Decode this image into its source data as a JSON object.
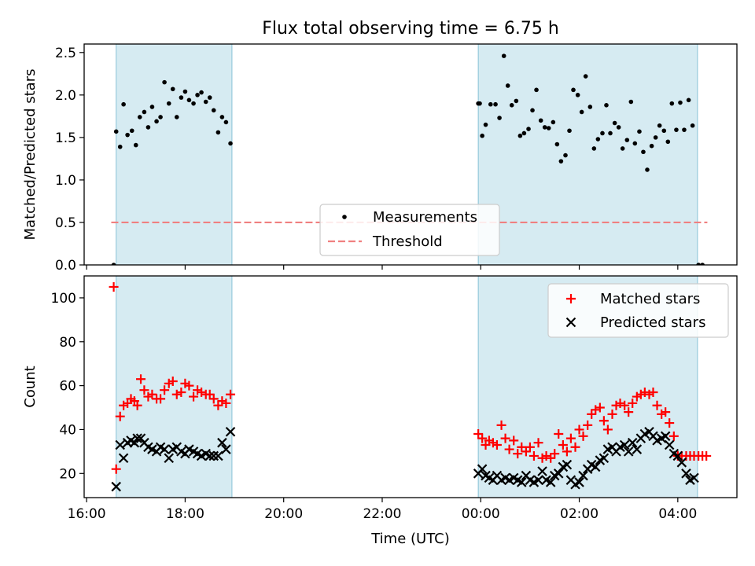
{
  "figure_title": "Flux total observing time = 6.75 h",
  "chart_data": [
    {
      "type": "scatter",
      "name": "ratio-panel",
      "ylabel": "Matched/Predicted stars",
      "xlabel": "",
      "xlim": [
        15.95,
        29.2
      ],
      "ylim": [
        0,
        2.6
      ],
      "yticks": [
        0.0,
        0.5,
        1.0,
        1.5,
        2.0,
        2.5
      ],
      "ytick_labels": [
        "0.0",
        "0.5",
        "1.0",
        "1.5",
        "2.0",
        "2.5"
      ],
      "shaded_spans": [
        [
          16.6,
          18.95
        ],
        [
          23.95,
          28.4
        ]
      ],
      "threshold": {
        "label": "Threshold",
        "value": 0.5,
        "x_range": [
          16.5,
          28.6
        ],
        "color": "#f08080"
      },
      "legend": {
        "position": "lower-center",
        "entries": [
          "Measurements",
          "Threshold"
        ]
      },
      "series": [
        {
          "name": "Measurements",
          "color": "#000000",
          "x": [
            16.55,
            16.6,
            16.68,
            16.75,
            16.83,
            16.92,
            17.0,
            17.08,
            17.17,
            17.25,
            17.33,
            17.42,
            17.5,
            17.58,
            17.67,
            17.75,
            17.83,
            17.92,
            18.0,
            18.08,
            18.17,
            18.25,
            18.33,
            18.42,
            18.5,
            18.58,
            18.67,
            18.75,
            18.83,
            23.95,
            24.03,
            24.1,
            24.2,
            24.3,
            24.38,
            24.47,
            24.55,
            24.63,
            24.72,
            24.8,
            24.88,
            24.97,
            25.05,
            25.13,
            25.22,
            25.3,
            25.38,
            25.47,
            25.55,
            25.63,
            25.72,
            25.8,
            25.88,
            25.97,
            26.05,
            26.13,
            26.22,
            26.3,
            26.38,
            26.47,
            26.55,
            26.63,
            26.72,
            26.8,
            26.88,
            26.97,
            27.05,
            27.13,
            27.22,
            27.3,
            27.38,
            27.47,
            27.55,
            27.63,
            27.72,
            27.8,
            27.88,
            27.97,
            28.05,
            28.13,
            28.22,
            28.3,
            28.42,
            28.5,
            18.92,
            23.98
          ],
          "y": [
            0.0,
            1.57,
            1.39,
            1.89,
            1.53,
            1.58,
            1.41,
            1.74,
            1.8,
            1.62,
            1.86,
            1.69,
            1.74,
            2.15,
            1.9,
            2.07,
            1.74,
            1.97,
            2.04,
            1.94,
            1.9,
            2.0,
            2.03,
            1.92,
            1.97,
            1.82,
            1.56,
            1.74,
            1.68,
            1.9,
            1.52,
            1.65,
            1.89,
            1.89,
            1.73,
            2.46,
            2.11,
            1.88,
            1.93,
            1.52,
            1.55,
            1.6,
            1.82,
            2.06,
            1.7,
            1.62,
            1.61,
            1.68,
            1.42,
            1.22,
            1.29,
            1.58,
            2.06,
            2.0,
            1.8,
            2.22,
            1.86,
            1.37,
            1.48,
            1.55,
            1.88,
            1.55,
            1.67,
            1.62,
            1.37,
            1.47,
            1.92,
            1.43,
            1.57,
            1.33,
            1.12,
            1.4,
            1.5,
            1.64,
            1.58,
            1.45,
            1.9,
            1.59,
            1.91,
            1.59,
            1.94,
            1.64,
            0.0,
            0.0,
            1.43,
            1.9
          ]
        }
      ]
    },
    {
      "type": "scatter",
      "name": "count-panel",
      "ylabel": "Count",
      "xlabel": "Time (UTC)",
      "xlim": [
        15.95,
        29.2
      ],
      "ylim": [
        9,
        110
      ],
      "yticks": [
        20,
        40,
        60,
        80,
        100
      ],
      "ytick_labels": [
        "20",
        "40",
        "60",
        "80",
        "100"
      ],
      "xticks": [
        16,
        18,
        20,
        22,
        24,
        26,
        28
      ],
      "xtick_labels": [
        "16:00",
        "18:00",
        "20:00",
        "22:00",
        "00:00",
        "02:00",
        "04:00"
      ],
      "shaded_spans": [
        [
          16.6,
          18.95
        ],
        [
          23.95,
          28.4
        ]
      ],
      "legend": {
        "position": "top-right",
        "entries": [
          "Matched stars",
          "Predicted stars"
        ]
      },
      "series": [
        {
          "name": "Matched stars",
          "marker": "+",
          "color": "#ff0000",
          "x": [
            16.55,
            16.6,
            16.68,
            16.75,
            16.83,
            16.9,
            16.97,
            17.03,
            17.1,
            17.17,
            17.25,
            17.33,
            17.42,
            17.5,
            17.58,
            17.67,
            17.75,
            17.83,
            17.92,
            18.0,
            18.08,
            18.17,
            18.25,
            18.33,
            18.42,
            18.5,
            18.58,
            18.67,
            18.75,
            18.83,
            18.92,
            23.95,
            24.03,
            24.1,
            24.17,
            24.25,
            24.33,
            24.42,
            24.5,
            24.58,
            24.67,
            24.75,
            24.83,
            24.92,
            25.0,
            25.08,
            25.17,
            25.25,
            25.33,
            25.42,
            25.5,
            25.58,
            25.67,
            25.75,
            25.83,
            25.92,
            26.0,
            26.08,
            26.17,
            26.25,
            26.33,
            26.42,
            26.5,
            26.58,
            26.67,
            26.75,
            26.83,
            26.92,
            27.0,
            27.08,
            27.17,
            27.25,
            27.33,
            27.42,
            27.5,
            27.58,
            27.67,
            27.75,
            27.83,
            27.92,
            28.0,
            28.08,
            28.17,
            28.25,
            28.33,
            28.42,
            28.5,
            28.58
          ],
          "y": [
            105,
            22,
            46,
            51,
            52,
            54,
            53,
            51,
            63,
            58,
            55,
            56,
            54,
            54,
            58,
            61,
            62,
            56,
            57,
            61,
            60,
            55,
            58,
            57,
            56,
            56,
            54,
            51,
            53,
            52,
            56,
            38,
            36,
            33,
            35,
            34,
            33,
            42,
            36,
            31,
            35,
            29,
            32,
            30,
            32,
            28,
            34,
            27,
            28,
            27,
            29,
            38,
            33,
            30,
            36,
            32,
            40,
            37,
            42,
            47,
            49,
            50,
            44,
            40,
            47,
            51,
            52,
            51,
            48,
            52,
            55,
            56,
            57,
            56,
            57,
            51,
            47,
            48,
            43,
            37,
            28,
            28,
            28,
            28,
            28,
            28,
            28,
            28
          ]
        },
        {
          "name": "Predicted stars",
          "marker": "x",
          "color": "#000000",
          "x": [
            16.6,
            16.68,
            16.75,
            16.83,
            16.9,
            16.97,
            17.03,
            17.1,
            17.17,
            17.25,
            17.33,
            17.42,
            17.5,
            17.58,
            17.67,
            17.75,
            17.83,
            17.92,
            18.0,
            18.08,
            18.17,
            18.25,
            18.33,
            18.42,
            18.5,
            18.58,
            18.67,
            18.75,
            18.83,
            18.92,
            23.95,
            24.03,
            24.1,
            24.17,
            24.25,
            24.33,
            24.42,
            24.5,
            24.58,
            24.67,
            24.75,
            24.83,
            24.92,
            25.0,
            25.08,
            25.17,
            25.25,
            25.33,
            25.42,
            25.5,
            25.58,
            25.67,
            25.75,
            25.83,
            25.92,
            26.0,
            26.08,
            26.17,
            26.25,
            26.33,
            26.42,
            26.5,
            26.58,
            26.67,
            26.75,
            26.83,
            26.92,
            27.0,
            27.08,
            27.17,
            27.25,
            27.33,
            27.42,
            27.5,
            27.58,
            27.67,
            27.75,
            27.83,
            27.92,
            28.0,
            28.08,
            28.17,
            28.25,
            28.33
          ],
          "y": [
            14,
            33,
            27,
            34,
            35,
            34,
            36,
            36,
            34,
            32,
            31,
            30,
            32,
            31,
            27,
            31,
            32,
            30,
            29,
            31,
            30,
            29,
            28,
            29,
            28,
            28,
            28,
            34,
            31,
            39,
            20,
            22,
            19,
            18,
            17,
            19,
            17,
            18,
            17,
            18,
            17,
            16,
            19,
            17,
            16,
            17,
            21,
            17,
            16,
            19,
            20,
            23,
            24,
            17,
            15,
            16,
            19,
            22,
            24,
            23,
            26,
            27,
            31,
            32,
            30,
            32,
            33,
            30,
            34,
            31,
            36,
            38,
            39,
            37,
            35,
            36,
            37,
            33,
            29,
            28,
            25,
            20,
            17,
            18
          ]
        }
      ]
    }
  ]
}
